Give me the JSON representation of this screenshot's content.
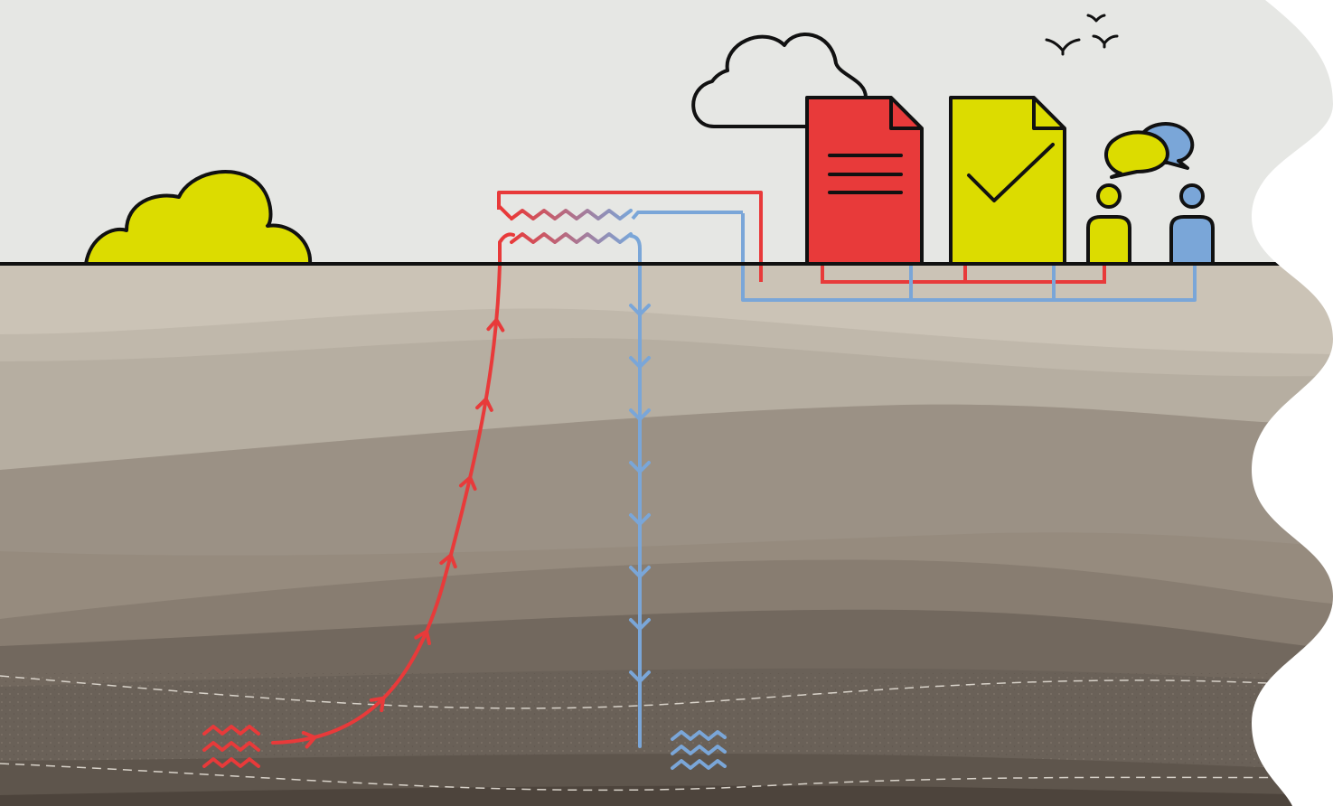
{
  "diagram": {
    "subject": "geothermal-heat-exchange-with-permitting",
    "colors": {
      "sky": "#e6e7e4",
      "outline": "#111111",
      "hot": "#e83a3a",
      "cold": "#7aa6d8",
      "yellow": "#dcdc00",
      "page_edge": "#ffffff",
      "soil_1": "#cbc3b6",
      "soil_2": "#b6aea1",
      "soil_3": "#9b9185",
      "soil_4": "#887d71",
      "soil_5": "#72685e",
      "soil_6": "#63594f",
      "soil_7": "#4d443c"
    },
    "icons": {
      "surface_bush": "bush-icon",
      "cloud": "cloud-icon",
      "birds": "birds-icon",
      "document": "document-icon",
      "approval": "approved-document-icon",
      "dialogue": "speech-bubbles-icon",
      "person_a": "person-icon",
      "person_b": "person-icon",
      "heat_exchanger": "heat-exchanger-icon",
      "hot_water": "hot-water-icon",
      "cold_water": "cold-water-icon"
    },
    "flows": {
      "production_well": "hot",
      "injection_well": "cold",
      "production_arrow_count": 7,
      "injection_arrow_count": 8
    }
  }
}
